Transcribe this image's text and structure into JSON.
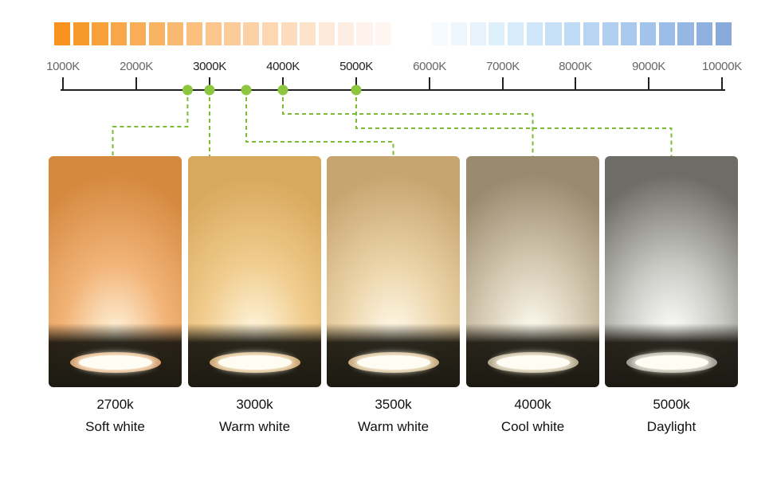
{
  "gradient_strip": {
    "colors": [
      "#f7931e",
      "#f79a2c",
      "#f8a13a",
      "#f8a748",
      "#f9ad55",
      "#f9b363",
      "#fab970",
      "#fbbf7e",
      "#fbc58b",
      "#fbcb98",
      "#fcd1a5",
      "#fcd7b2",
      "#fddcbe",
      "#fde2ca",
      "#fee8d7",
      "#feede3",
      "#fef2ec",
      "#fff6f2",
      "#ffffff",
      "#ffffff",
      "#f6fbff",
      "#eef7fe",
      "#e6f3fd",
      "#def0fc",
      "#d6ebfb",
      "#cfe5f9",
      "#c7e0f7",
      "#bfdaf5",
      "#b8d4f3",
      "#b0cff0",
      "#a9c9ee",
      "#a2c3ea",
      "#9cbde7",
      "#95b7e3",
      "#8fb1df",
      "#89abdb"
    ]
  },
  "scale": {
    "labels": [
      "1000K",
      "2000K",
      "3000K",
      "4000K",
      "5000K",
      "6000K",
      "7000K",
      "8000K",
      "9000K",
      "10000K"
    ],
    "highlighted": [
      "3000K",
      "4000K",
      "5000K"
    ],
    "marker_color": "#8dc63f",
    "connector_color": "#7dbb35"
  },
  "panels": [
    {
      "temp": "2700k",
      "name": "Soft white",
      "glow": "#fff4dc",
      "top": "#d5893f",
      "mid": "#f2b478",
      "fixture_rim": "#d7a070"
    },
    {
      "temp": "3000k",
      "name": "Warm white",
      "glow": "#fff7e0",
      "top": "#d8a85c",
      "mid": "#f1cd8f",
      "fixture_rim": "#cfa874"
    },
    {
      "temp": "3500k",
      "name": "Warm white",
      "glow": "#fffaea",
      "top": "#c7a570",
      "mid": "#ecd4a9",
      "fixture_rim": "#c8ab82"
    },
    {
      "temp": "4000k",
      "name": "Cool white",
      "glow": "#fffdf2",
      "top": "#9a8a6e",
      "mid": "#d6cbb4",
      "fixture_rim": "#b4a88f"
    },
    {
      "temp": "5000k",
      "name": "Daylight",
      "glow": "#ffffff",
      "top": "#6e6c66",
      "mid": "#c9c9c4",
      "fixture_rim": "#9c9c98"
    }
  ]
}
